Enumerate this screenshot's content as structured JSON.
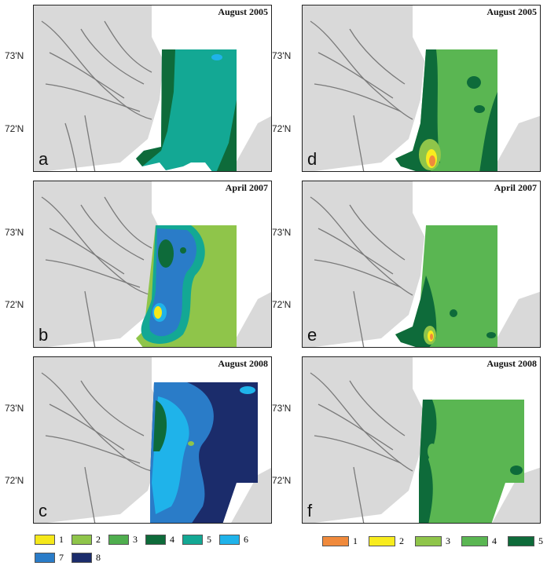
{
  "lat_labels": {
    "north": "73'N",
    "south": "72'N"
  },
  "panels": [
    {
      "letter": "a",
      "date": "August 2005"
    },
    {
      "letter": "b",
      "date": "April 2007"
    },
    {
      "letter": "c",
      "date": "August 2008"
    },
    {
      "letter": "d",
      "date": "August 2005"
    },
    {
      "letter": "e",
      "date": "April 2007"
    },
    {
      "letter": "f",
      "date": "August 2008"
    }
  ],
  "legend_left": [
    {
      "label": "1",
      "color": "#f5e81a"
    },
    {
      "label": "2",
      "color": "#8fc54a"
    },
    {
      "label": "3",
      "color": "#4fae4e"
    },
    {
      "label": "4",
      "color": "#0e6b3a"
    },
    {
      "label": "5",
      "color": "#13a894"
    },
    {
      "label": "6",
      "color": "#1fb3ea"
    },
    {
      "label": "7",
      "color": "#2a7cc8"
    },
    {
      "label": "8",
      "color": "#1b2c6b"
    }
  ],
  "legend_right": [
    {
      "label": "1",
      "color": "#f08a3c"
    },
    {
      "label": "2",
      "color": "#f8ec1e"
    },
    {
      "label": "3",
      "color": "#8fc54a"
    },
    {
      "label": "4",
      "color": "#5ab652"
    },
    {
      "label": "5",
      "color": "#0e6b3a"
    }
  ]
}
